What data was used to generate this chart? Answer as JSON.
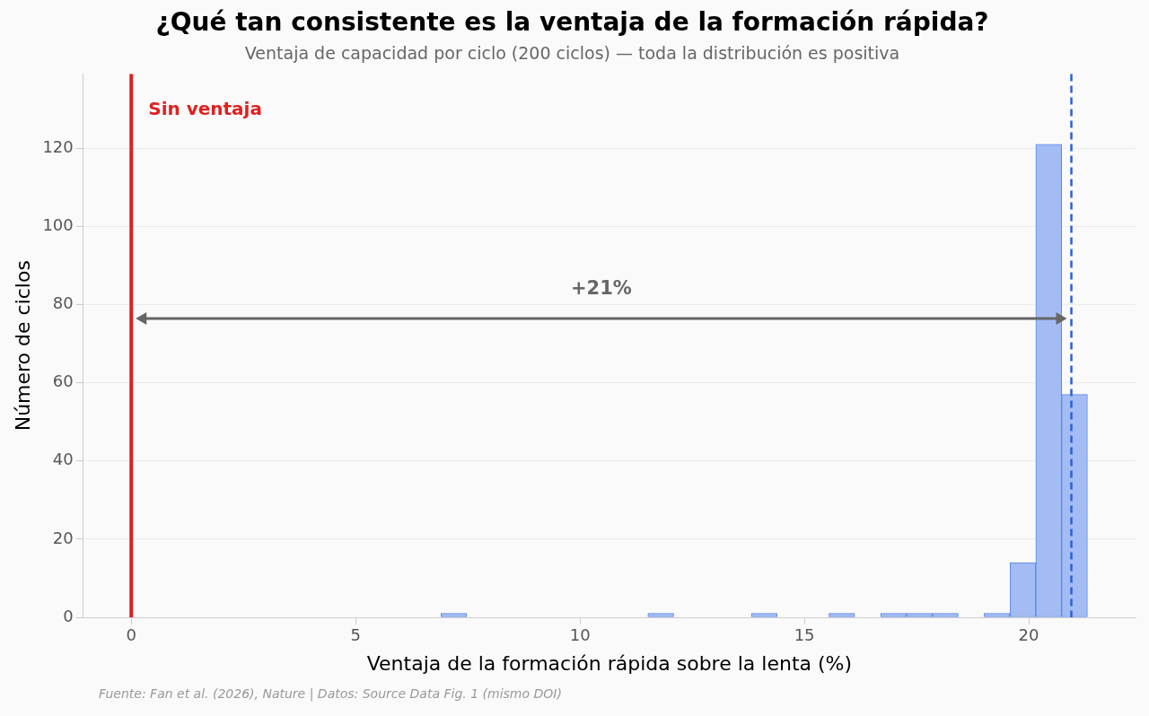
{
  "chart_data": {
    "type": "histogram",
    "title": "¿Qué tan consistente es la ventaja de la formación rápida?",
    "subtitle": "Ventaja de capacidad por ciclo (200 ciclos) — toda la distribución es positiva",
    "xlabel": "Ventaja de la formación rápida sobre la lenta (%)",
    "ylabel": "Número de ciclos",
    "bins": [
      6.9,
      7.48,
      8.05,
      8.63,
      9.21,
      9.78,
      10.36,
      10.93,
      11.51,
      12.09,
      12.66,
      13.24,
      13.82,
      14.39,
      14.97,
      15.55,
      16.12,
      16.7,
      17.28,
      17.85,
      18.43,
      19.0,
      19.58,
      20.16,
      20.73,
      21.31
    ],
    "values": [
      1,
      0,
      0,
      0,
      0,
      0,
      0,
      0,
      1,
      0,
      0,
      0,
      1,
      0,
      0,
      1,
      0,
      1,
      1,
      1,
      0,
      1,
      14,
      121,
      57
    ],
    "color": "#a4bcf4",
    "xlim": [
      -1.07,
      22.38
    ],
    "xticks": [
      0,
      5,
      10,
      15,
      20
    ],
    "ylim": [
      0,
      139
    ],
    "yticks": [
      0,
      20,
      40,
      60,
      80,
      100,
      120
    ],
    "grid": "y",
    "ref_lines": [
      {
        "axis": "x",
        "value": 0,
        "label": "Sin ventaja",
        "color": "#e02020",
        "line_style": "solid"
      },
      {
        "axis": "x",
        "value": 20.95,
        "color": "#2b5fd9",
        "line_style": "dashed"
      }
    ],
    "annotations": [
      "+21%",
      "Fuente: Fan et al. (2026), Nature | Datos: Source Data Fig. 1 (mismo DOI)"
    ]
  }
}
